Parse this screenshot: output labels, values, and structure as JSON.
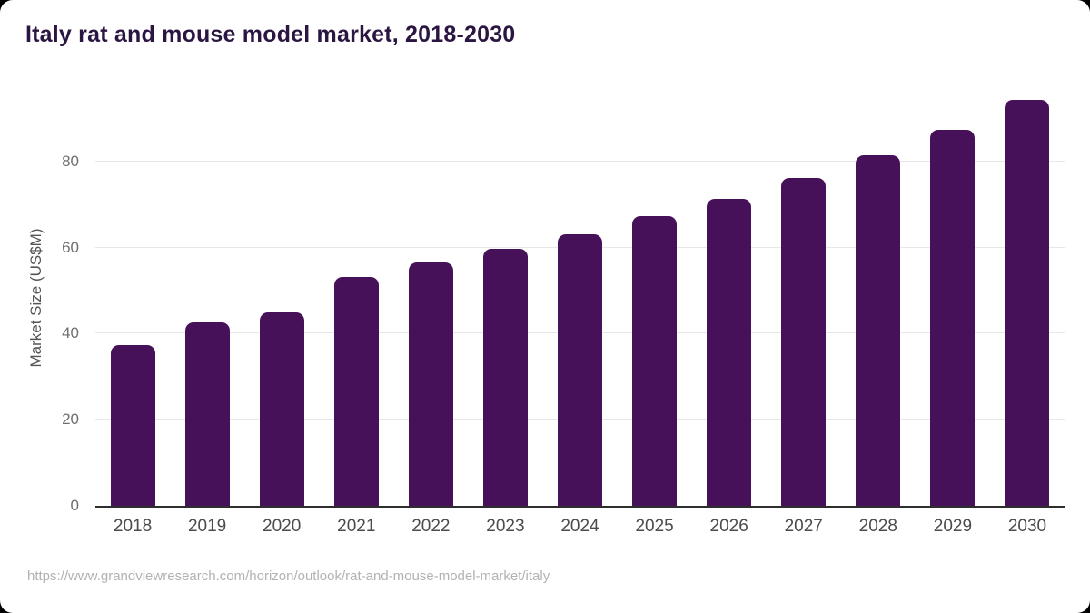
{
  "header": {
    "title": "Italy rat and mouse model market, 2018-2030"
  },
  "footer": {
    "source_url": "https://www.grandviewresearch.com/horizon/outlook/rat-and-mouse-model-market/italy"
  },
  "chart_data": {
    "type": "bar",
    "title": "Italy rat and mouse model market, 2018-2030",
    "categories": [
      "2018",
      "2019",
      "2020",
      "2021",
      "2022",
      "2023",
      "2024",
      "2025",
      "2026",
      "2027",
      "2028",
      "2029",
      "2030"
    ],
    "values": [
      37.4,
      42.7,
      44.9,
      53.2,
      56.5,
      59.6,
      63.1,
      67.2,
      71.4,
      76.2,
      81.5,
      87.3,
      94.2
    ],
    "xlabel": "",
    "ylabel": "Market Size (US$M)",
    "ylim": [
      0,
      96.4
    ],
    "yticks": [
      0,
      20,
      40,
      60,
      80
    ],
    "grid": true,
    "legend": false,
    "colors": {
      "bar": "#471159",
      "title": "#2b1642",
      "gridline": "#e7e7e7",
      "axis_line": "#2e2e2e",
      "tick_label": "#6e6e6e",
      "x_label": "#4b4b4b",
      "source": "#b2b2b2",
      "card_background": "#ffffff"
    }
  }
}
